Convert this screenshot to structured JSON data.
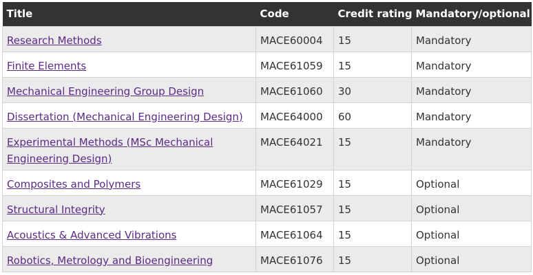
{
  "table": {
    "headers": {
      "title": "Title",
      "code": "Code",
      "credit": "Credit rating",
      "mandatory": "Mandatory/optional"
    },
    "rows": [
      {
        "title": "Research Methods",
        "code": "MACE60004",
        "credit": "15",
        "mandatory": "Mandatory"
      },
      {
        "title": "Finite Elements",
        "code": "MACE61059",
        "credit": "15",
        "mandatory": "Mandatory"
      },
      {
        "title": "Mechanical Engineering Group Design",
        "code": "MACE61060",
        "credit": "30",
        "mandatory": "Mandatory"
      },
      {
        "title": "Dissertation (Mechanical Engineering Design)",
        "code": "MACE64000",
        "credit": "60",
        "mandatory": "Mandatory"
      },
      {
        "title": "Experimental Methods (MSc Mechanical Engineering Design)",
        "code": "MACE64021",
        "credit": "15",
        "mandatory": "Mandatory"
      },
      {
        "title": "Composites and Polymers",
        "code": "MACE61029",
        "credit": "15",
        "mandatory": "Optional"
      },
      {
        "title": "Structural Integrity",
        "code": "MACE61057",
        "credit": "15",
        "mandatory": "Optional"
      },
      {
        "title": "Acoustics & Advanced Vibrations",
        "code": "MACE61064",
        "credit": "15",
        "mandatory": "Optional"
      },
      {
        "title": "Robotics, Metrology and Bioengineering",
        "code": "MACE61076",
        "credit": "15",
        "mandatory": "Optional"
      }
    ]
  },
  "colors": {
    "header_bg": "#333333",
    "header_text": "#ffffff",
    "link": "#5b2a86",
    "row_alt": "#ebebeb",
    "border": "#d4d4d4"
  }
}
